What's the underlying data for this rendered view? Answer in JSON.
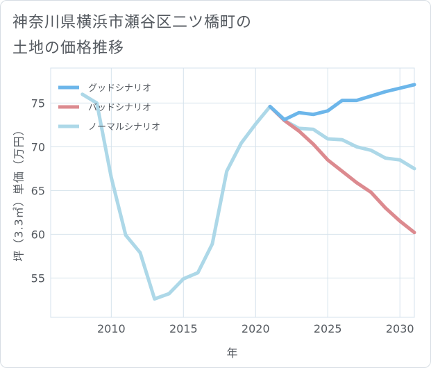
{
  "title_line1": "神奈川県横浜市瀬谷区二ツ橋町の",
  "title_line2": "土地の価格推移",
  "chart_data": {
    "type": "line",
    "xlabel": "年",
    "ylabel": "坪（3.3㎡）単価（万円）",
    "xlim": [
      2005.8,
      2031
    ],
    "ylim": [
      50.5,
      79
    ],
    "xticks": [
      2010,
      2015,
      2020,
      2025,
      2030
    ],
    "yticks": [
      55,
      60,
      65,
      70,
      75
    ],
    "grid": true,
    "legend_position": "top-left",
    "series": [
      {
        "name": "グッドシナリオ",
        "color": "#6cb6ea",
        "x": [
          2021,
          2022,
          2023,
          2024,
          2025,
          2026,
          2027,
          2028,
          2029,
          2030,
          2031
        ],
        "y": [
          74.6,
          73.1,
          73.9,
          73.7,
          74.1,
          75.3,
          75.3,
          75.8,
          76.3,
          76.7,
          77.1
        ]
      },
      {
        "name": "バッドシナリオ",
        "color": "#dc8a8f",
        "x": [
          2021,
          2022,
          2023,
          2024,
          2025,
          2026,
          2027,
          2028,
          2029,
          2030,
          2031
        ],
        "y": [
          74.6,
          73.0,
          71.8,
          70.3,
          68.5,
          67.2,
          65.9,
          64.8,
          63.0,
          61.5,
          60.2
        ]
      },
      {
        "name": "ノーマルシナリオ",
        "color": "#add8e8",
        "x": [
          2008,
          2009,
          2010,
          2011,
          2012,
          2013,
          2014,
          2015,
          2016,
          2017,
          2018,
          2019,
          2020,
          2021,
          2022,
          2023,
          2024,
          2025,
          2026,
          2027,
          2028,
          2029,
          2030,
          2031
        ],
        "y": [
          76.0,
          75.0,
          66.5,
          59.9,
          57.9,
          52.6,
          53.2,
          54.9,
          55.6,
          58.9,
          67.2,
          70.4,
          72.6,
          74.6,
          73.0,
          72.1,
          72.0,
          70.9,
          70.8,
          70.0,
          69.6,
          68.7,
          68.5,
          67.5
        ]
      }
    ]
  }
}
